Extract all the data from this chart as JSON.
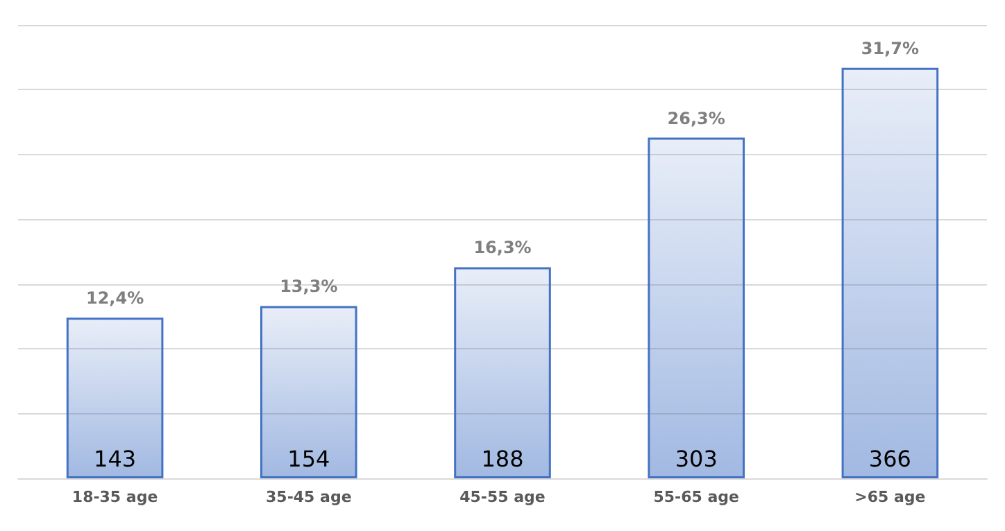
{
  "chart_data": {
    "type": "bar",
    "categories": [
      "18-35 age",
      "35-45 age",
      "45-55 age",
      "55-65 age",
      ">65 age"
    ],
    "values": [
      12.4,
      13.3,
      16.3,
      26.3,
      31.7
    ],
    "value_labels": [
      "12,4%",
      "13,3%",
      "16,3%",
      "26,3%",
      "31,7%"
    ],
    "color": "#4472c4",
    "tick_labels": "x",
    "grid": "y",
    "annotations": [
      "143",
      "154",
      "188",
      "303",
      "366"
    ]
  }
}
